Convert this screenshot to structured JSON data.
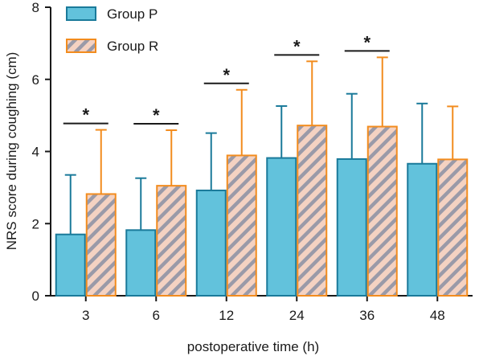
{
  "chart_data": {
    "type": "bar",
    "title": "",
    "xlabel": "postoperative time (h)",
    "ylabel": "NRS score during coughing (cm)",
    "categories": [
      "3",
      "6",
      "12",
      "24",
      "36",
      "48"
    ],
    "ylim": [
      0,
      8
    ],
    "yticks": [
      "0",
      "2",
      "4",
      "6",
      "8"
    ],
    "grid": false,
    "legend_position": "top-left",
    "series": [
      {
        "name": "Group P",
        "fill": "#62c2dc",
        "stroke": "#1a7a9a",
        "pattern": "solid",
        "values": [
          1.7,
          1.82,
          2.92,
          3.82,
          3.79,
          3.66
        ],
        "error_upper": [
          3.35,
          3.26,
          4.51,
          5.26,
          5.6,
          5.33
        ]
      },
      {
        "name": "Group R",
        "fill": "#f4d2c2",
        "hatch": "#9a9aa8",
        "stroke": "#f28c1e",
        "pattern": "diagonal-hatch",
        "values": [
          2.82,
          3.05,
          3.89,
          4.72,
          4.69,
          3.78
        ],
        "error_upper": [
          4.6,
          4.59,
          5.71,
          6.5,
          6.61,
          5.25
        ]
      }
    ],
    "significance": [
      {
        "category": "3",
        "label": "*"
      },
      {
        "category": "6",
        "label": "*"
      },
      {
        "category": "12",
        "label": "*"
      },
      {
        "category": "24",
        "label": "*"
      },
      {
        "category": "36",
        "label": "*"
      }
    ]
  }
}
